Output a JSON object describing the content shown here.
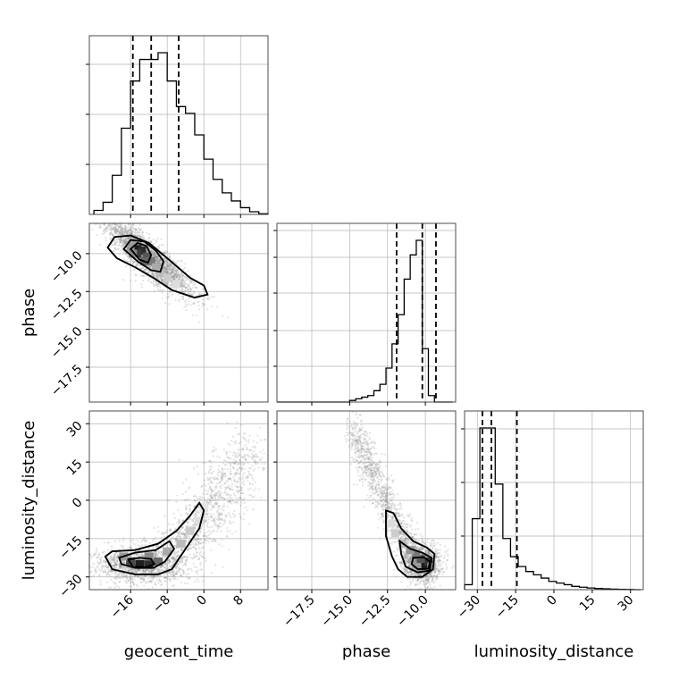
{
  "chart_data": {
    "type": "corner",
    "parameters": [
      "geocent_time",
      "phase",
      "luminosity_distance"
    ],
    "axes": {
      "geocent_time": {
        "range": [
          -25,
          14
        ],
        "ticks": [
          -16,
          -8,
          0,
          8
        ],
        "tick_labels": [
          "−16",
          "−8",
          "0",
          "8"
        ]
      },
      "phase": {
        "range": [
          -19.8,
          -8.0
        ],
        "ticks": [
          -17.5,
          -15.0,
          -12.5,
          -10.0
        ],
        "tick_labels": [
          "−17.5",
          "−15.0",
          "−12.5",
          "−10.0"
        ]
      },
      "luminosity_distance": {
        "range": [
          -35,
          35
        ],
        "ticks": [
          -30,
          -15,
          0,
          15,
          30
        ],
        "tick_labels": [
          "−30",
          "−15",
          "0",
          "15",
          "30"
        ]
      }
    },
    "marginals": [
      {
        "parameter": "geocent_time",
        "bin_edges": [
          -24,
          -22,
          -20,
          -18,
          -16,
          -14,
          -12,
          -10,
          -8,
          -6,
          -4,
          -2,
          0,
          2,
          4,
          6,
          8,
          10,
          12,
          14
        ],
        "counts": [
          0.03,
          0.09,
          0.29,
          0.64,
          0.99,
          1.15,
          1.15,
          1.2,
          0.99,
          0.8,
          0.75,
          0.59,
          0.41,
          0.26,
          0.16,
          0.1,
          0.05,
          0.02,
          0.005
        ],
        "quantiles": [
          -15.5,
          -11.5,
          -5.5
        ]
      },
      {
        "parameter": "phase",
        "bin_edges": [
          -19.8,
          -19.4,
          -19.0,
          -18.6,
          -18.2,
          -17.8,
          -17.4,
          -17.0,
          -16.6,
          -16.2,
          -15.8,
          -15.4,
          -15.0,
          -14.6,
          -14.2,
          -13.8,
          -13.4,
          -13.0,
          -12.6,
          -12.2,
          -11.8,
          -11.4,
          -11.0,
          -10.6,
          -10.2,
          -9.8,
          -9.4,
          -9.0,
          -8.6,
          -8.2
        ],
        "counts": [
          0,
          0,
          0,
          0,
          0,
          0,
          0,
          0,
          0,
          0,
          0,
          0,
          0.01,
          0.02,
          0.03,
          0.04,
          0.07,
          0.11,
          0.21,
          0.36,
          0.54,
          0.76,
          0.91,
          1.0,
          0.33,
          0.04,
          0,
          0,
          0
        ],
        "quantiles": [
          -11.9,
          -10.2,
          -9.3
        ]
      },
      {
        "parameter": "luminosity_distance",
        "bin_edges": [
          -35,
          -32,
          -29,
          -26,
          -23,
          -20,
          -17,
          -14,
          -11,
          -8,
          -5,
          -2,
          1,
          4,
          7,
          10,
          13,
          16,
          19,
          22,
          25,
          28,
          31,
          34
        ],
        "counts": [
          0.03,
          0.43,
          0.98,
          0.98,
          0.64,
          0.31,
          0.2,
          0.14,
          0.11,
          0.09,
          0.07,
          0.05,
          0.04,
          0.03,
          0.02,
          0.015,
          0.01,
          0.007,
          0.005,
          0.003,
          0.002,
          0.001,
          0
        ],
        "quantiles": [
          -28.0,
          -24.5,
          -14.5
        ]
      }
    ],
    "joint": [
      {
        "x": "geocent_time",
        "y": "phase",
        "mean": [
          -12.0,
          -10.5
        ],
        "sd": [
          4.8,
          1.1
        ],
        "rho": -0.88,
        "density_peak": [
          -14.0,
          -9.8
        ]
      },
      {
        "x": "geocent_time",
        "y": "luminosity_distance",
        "description_shape": "banana",
        "density_peak": [
          -14.5,
          -24.5
        ]
      },
      {
        "x": "phase",
        "y": "luminosity_distance",
        "description_shape": "banana",
        "density_peak": [
          -10.0,
          -24.5
        ]
      }
    ],
    "grid": true
  },
  "labels": {
    "x_bottom": [
      "geocent_time",
      "phase",
      "luminosity_distance"
    ],
    "y_left": [
      "phase",
      "luminosity_distance"
    ]
  }
}
